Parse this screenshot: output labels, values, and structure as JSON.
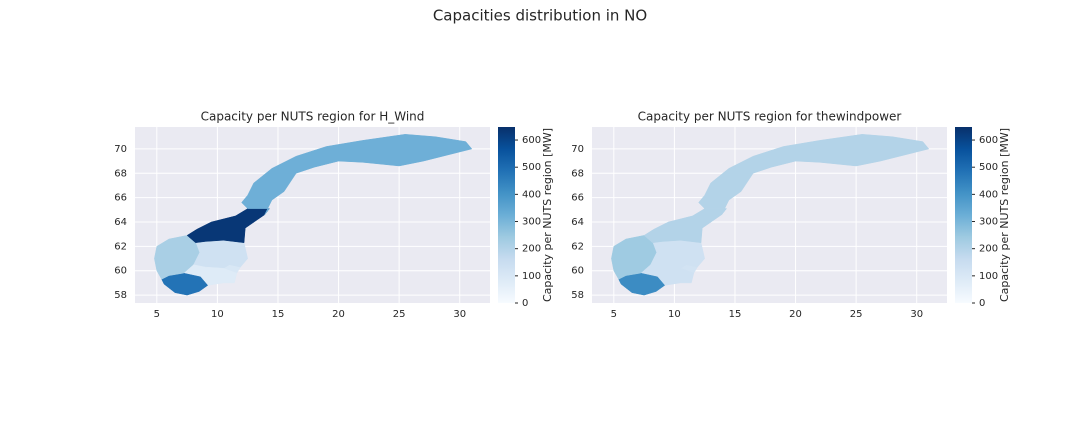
{
  "title": "Capacities distribution in NO",
  "chart_data": [
    {
      "type": "choropleth",
      "title": "Capacity per NUTS region for H_Wind",
      "colorbar_label": "Capacity per NUTS region [MW]",
      "cmap": "Blues",
      "values": [
        100,
        130,
        80,
        480,
        220,
        630,
        320
      ],
      "xlim": [
        3.2,
        32.5
      ],
      "ylim": [
        57.35,
        71.8
      ],
      "xticks": [
        5,
        10,
        15,
        20,
        25,
        30
      ],
      "yticks": [
        58,
        60,
        62,
        64,
        66,
        68,
        70
      ],
      "clim": [
        0,
        648
      ],
      "cticks": [
        0,
        100,
        200,
        300,
        400,
        500,
        600
      ],
      "grid": true
    },
    {
      "type": "choropleth",
      "title": "Capacity per NUTS region for thewindpower",
      "colorbar_label": "Capacity per NUTS region [MW]",
      "cmap": "Blues",
      "values": [
        120,
        130,
        130,
        420,
        240,
        200,
        200
      ],
      "xlim": [
        3.2,
        32.5
      ],
      "ylim": [
        57.35,
        71.8
      ],
      "xticks": [
        5,
        10,
        15,
        20,
        25,
        30
      ],
      "yticks": [
        58,
        60,
        62,
        64,
        66,
        68,
        70
      ],
      "clim": [
        0,
        648
      ],
      "cticks": [
        0,
        100,
        200,
        300,
        400,
        500,
        600
      ],
      "grid": true
    }
  ]
}
